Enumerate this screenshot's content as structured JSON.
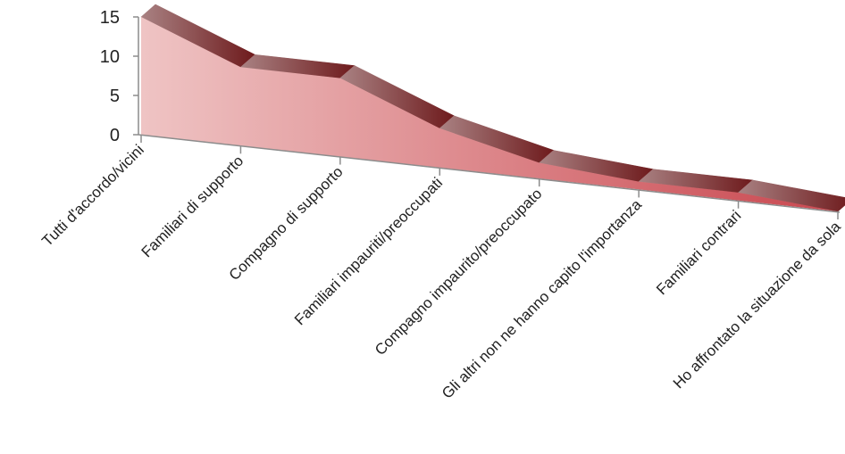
{
  "chart_data": {
    "type": "area",
    "title": "",
    "xlabel": "",
    "ylabel": "",
    "ylim": [
      0,
      15
    ],
    "yticks": [
      "0",
      "5",
      "10",
      "15"
    ],
    "grid": false,
    "legend": "none",
    "categories": [
      "Tutti d'accordo/vicini",
      "Familiari di supporto",
      "Compagno di supporto",
      "Familiari impauriti/preoccupati",
      "Compagno impaurito/preoccupato",
      "Gli altri non ne hanno capito l'importanza",
      "Familiari contrari",
      "Ho affrontato la situazione da sola"
    ],
    "series": [
      {
        "values": [
          15,
          10,
          10,
          5,
          2,
          1,
          1,
          0
        ]
      }
    ],
    "colors": {
      "area_start": "#efc4c4",
      "area_end": "#c9474f",
      "top_start": "#a98283",
      "top_end": "#6e1a1c",
      "axis": "#8c8c8c",
      "text": "#222222"
    }
  }
}
